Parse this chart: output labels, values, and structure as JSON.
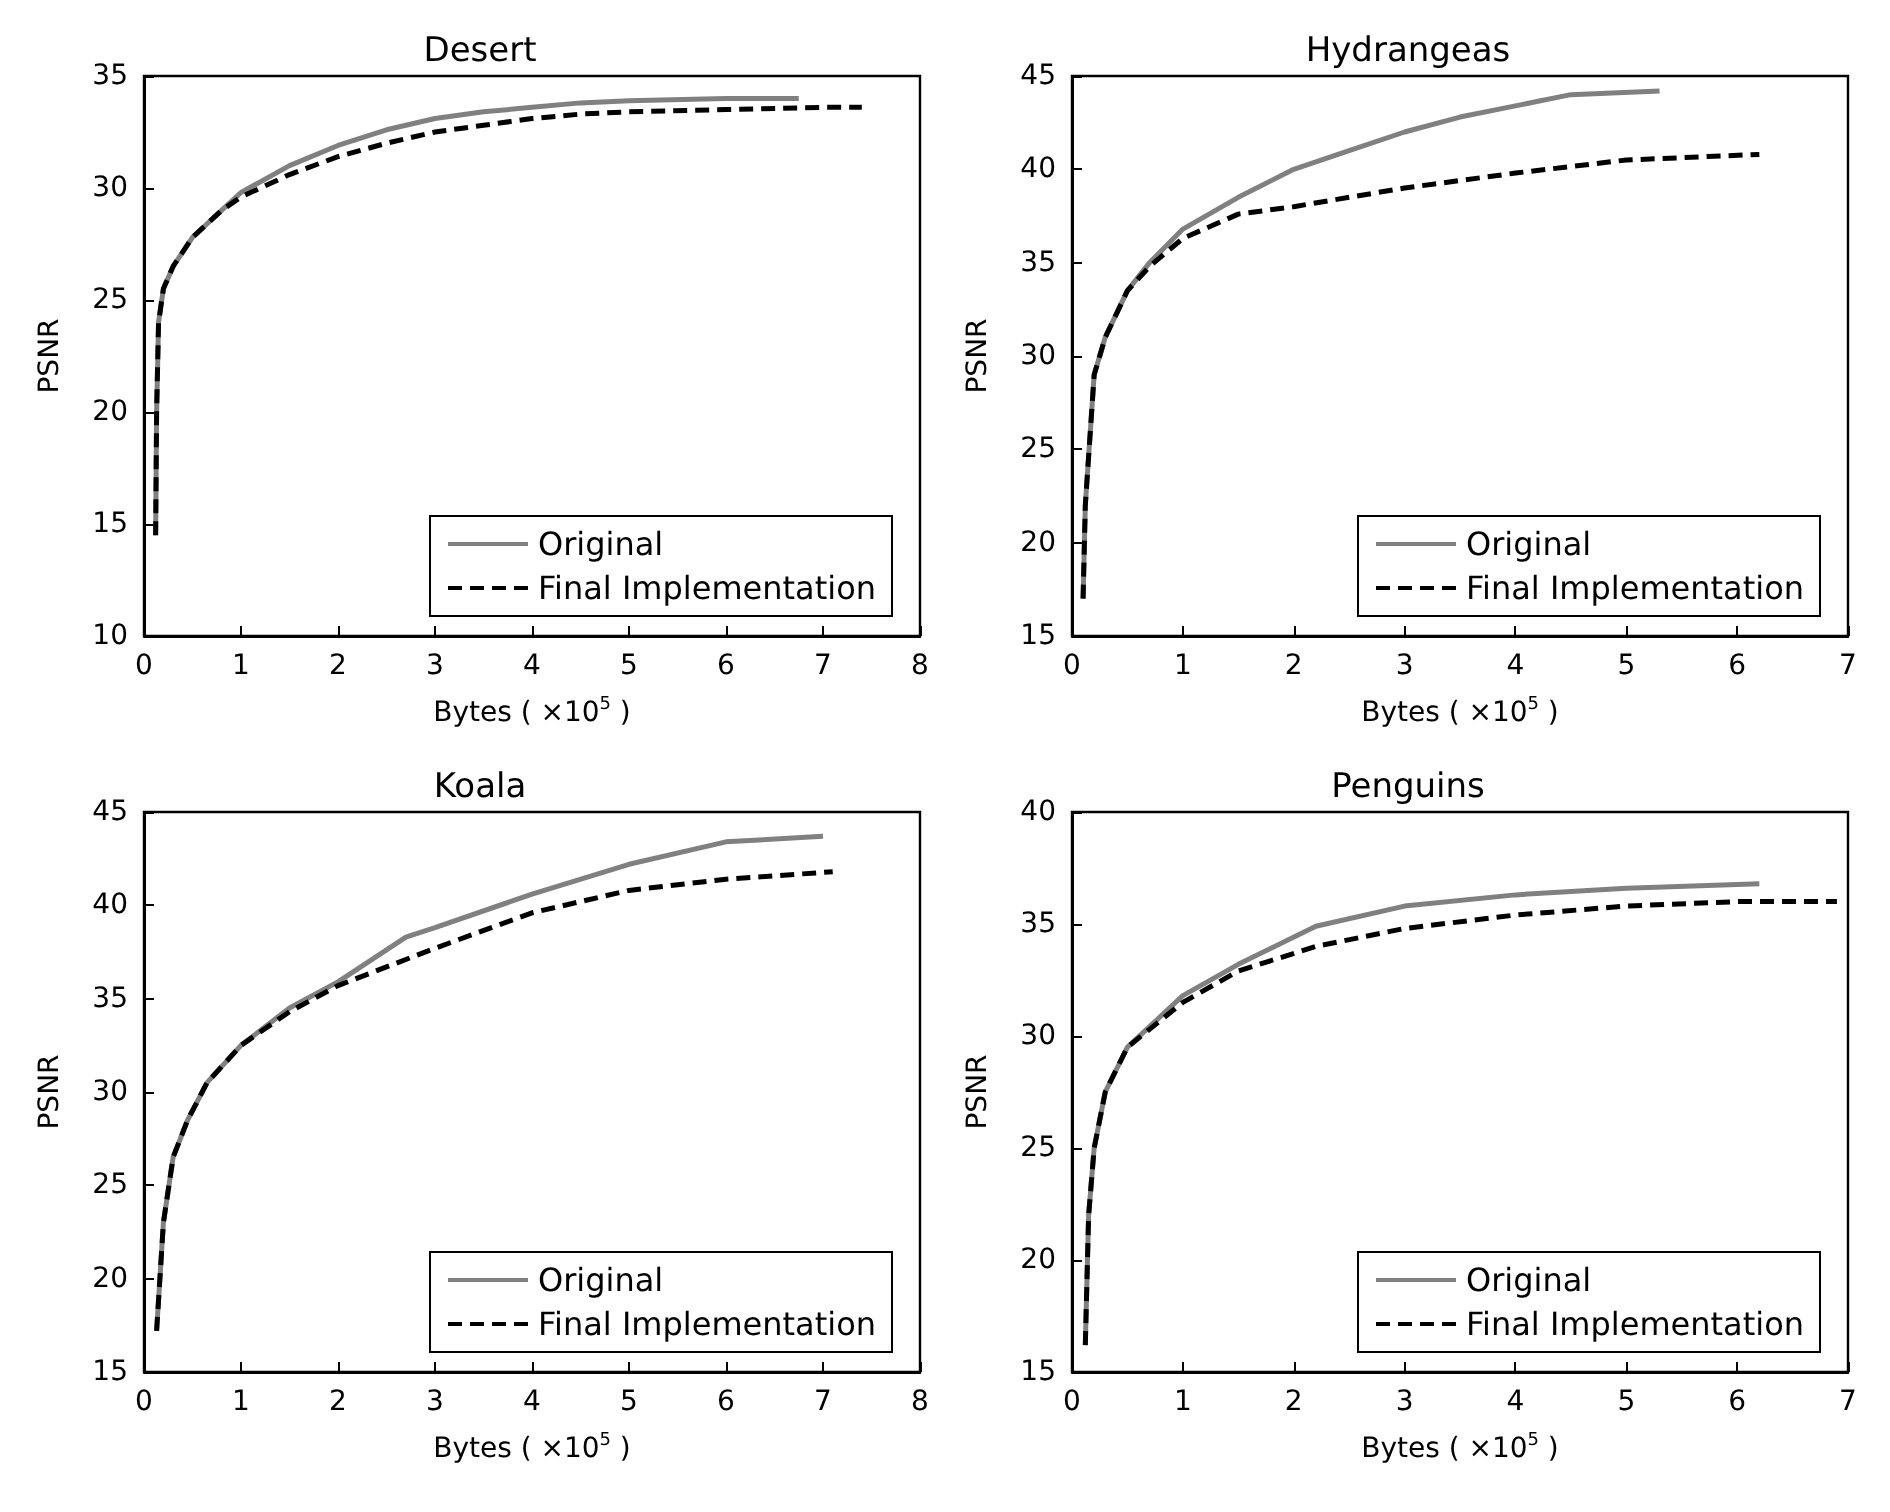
{
  "chart_data": [
    {
      "type": "line",
      "title": "Desert",
      "xlabel": "Bytes ( ×10$^{5}$ )",
      "ylabel": "PSNR",
      "xlim": [
        0,
        8
      ],
      "ylim": [
        10,
        35
      ],
      "xticks": [
        0,
        1,
        2,
        3,
        4,
        5,
        6,
        7,
        8
      ],
      "yticks": [
        10,
        15,
        20,
        25,
        30,
        35
      ],
      "grid": false,
      "legend": "bottom right",
      "marker": "none",
      "series": [
        {
          "name": "Original",
          "color": "#808080",
          "line_style": "solid",
          "x": [
            0.12,
            0.13,
            0.15,
            0.2,
            0.3,
            0.5,
            0.8,
            1,
            1.5,
            2,
            2.5,
            3,
            3.5,
            4,
            4.5,
            5,
            6,
            6.75
          ],
          "values": [
            14.5,
            20,
            24,
            25.5,
            26.5,
            27.8,
            29,
            29.8,
            31,
            31.9,
            32.6,
            33.1,
            33.4,
            33.6,
            33.8,
            33.9,
            34,
            34
          ]
        },
        {
          "name": "Final Implementation",
          "color": "#000000",
          "line_style": "dashed",
          "x": [
            0.12,
            0.13,
            0.15,
            0.2,
            0.3,
            0.5,
            0.8,
            1,
            1.5,
            2,
            2.5,
            3,
            3.5,
            4,
            4.5,
            5,
            6,
            7,
            7.4
          ],
          "values": [
            14.5,
            20,
            24,
            25.5,
            26.5,
            27.8,
            29,
            29.6,
            30.6,
            31.4,
            32,
            32.5,
            32.8,
            33.1,
            33.3,
            33.4,
            33.5,
            33.6,
            33.6
          ]
        }
      ]
    },
    {
      "type": "line",
      "title": "Hydrangeas",
      "xlabel": "Bytes ( ×10$^{5}$ )",
      "ylabel": "PSNR",
      "xlim": [
        0,
        7
      ],
      "ylim": [
        15,
        45
      ],
      "xticks": [
        0,
        1,
        2,
        3,
        4,
        5,
        6,
        7
      ],
      "yticks": [
        15,
        20,
        25,
        30,
        35,
        40,
        45
      ],
      "grid": false,
      "legend": "bottom right",
      "marker": "none",
      "series": [
        {
          "name": "Original",
          "color": "#808080",
          "line_style": "solid",
          "x": [
            0.1,
            0.12,
            0.2,
            0.3,
            0.5,
            0.7,
            1,
            1.5,
            2,
            2.5,
            3,
            3.5,
            4,
            4.5,
            5.3
          ],
          "values": [
            17,
            22,
            29,
            31,
            33.5,
            35,
            36.8,
            38.5,
            40,
            41,
            42,
            42.8,
            43.4,
            44,
            44.2
          ]
        },
        {
          "name": "Final Implementation",
          "color": "#000000",
          "line_style": "dashed",
          "x": [
            0.1,
            0.12,
            0.2,
            0.3,
            0.5,
            0.7,
            1,
            1.5,
            2,
            2.5,
            3,
            4,
            5,
            6.2
          ],
          "values": [
            17,
            22,
            29,
            31,
            33.5,
            34.8,
            36.3,
            37.6,
            38,
            38.5,
            39,
            39.8,
            40.5,
            40.8
          ]
        }
      ]
    },
    {
      "type": "line",
      "title": "Koala",
      "xlabel": "Bytes ( ×10$^{5}$ )",
      "ylabel": "PSNR",
      "xlim": [
        0,
        8
      ],
      "ylim": [
        15,
        45
      ],
      "xticks": [
        0,
        1,
        2,
        3,
        4,
        5,
        6,
        7,
        8
      ],
      "yticks": [
        15,
        20,
        25,
        30,
        35,
        40,
        45
      ],
      "grid": false,
      "legend": "bottom right",
      "marker": "none",
      "series": [
        {
          "name": "Original",
          "color": "#808080",
          "line_style": "solid",
          "x": [
            0.13,
            0.2,
            0.3,
            0.45,
            0.65,
            1,
            1.5,
            2,
            2.7,
            3,
            4,
            5,
            6,
            7
          ],
          "values": [
            17.2,
            23,
            26.5,
            28.5,
            30.5,
            32.5,
            34.5,
            35.9,
            38.3,
            38.8,
            40.6,
            42.2,
            43.4,
            43.7
          ]
        },
        {
          "name": "Final Implementation",
          "color": "#000000",
          "line_style": "dashed",
          "x": [
            0.13,
            0.2,
            0.3,
            0.45,
            0.65,
            1,
            1.5,
            2,
            3,
            4,
            5,
            6,
            7.1
          ],
          "values": [
            17.2,
            23,
            26.5,
            28.5,
            30.5,
            32.5,
            34.3,
            35.7,
            37.7,
            39.6,
            40.8,
            41.4,
            41.8
          ]
        }
      ]
    },
    {
      "type": "line",
      "title": "Penguins",
      "xlabel": "Bytes ( ×10$^{5}$ )",
      "ylabel": "PSNR",
      "xlim": [
        0,
        7
      ],
      "ylim": [
        15,
        40
      ],
      "xticks": [
        0,
        1,
        2,
        3,
        4,
        5,
        6,
        7
      ],
      "yticks": [
        15,
        20,
        25,
        30,
        35,
        40
      ],
      "grid": false,
      "legend": "bottom right",
      "marker": "none",
      "series": [
        {
          "name": "Original",
          "color": "#808080",
          "line_style": "solid",
          "x": [
            0.12,
            0.15,
            0.2,
            0.3,
            0.5,
            1,
            1.5,
            2.2,
            3,
            4,
            5,
            6.2
          ],
          "values": [
            16.2,
            22,
            25,
            27.5,
            29.5,
            31.8,
            33.2,
            34.9,
            35.8,
            36.3,
            36.6,
            36.8
          ]
        },
        {
          "name": "Final Implementation",
          "color": "#000000",
          "line_style": "dashed",
          "x": [
            0.12,
            0.15,
            0.2,
            0.3,
            0.5,
            1,
            1.5,
            2.2,
            3,
            4,
            5,
            6,
            6.9
          ],
          "values": [
            16.2,
            22,
            25,
            27.5,
            29.5,
            31.5,
            32.9,
            34,
            34.8,
            35.4,
            35.8,
            36,
            36
          ]
        }
      ]
    }
  ]
}
